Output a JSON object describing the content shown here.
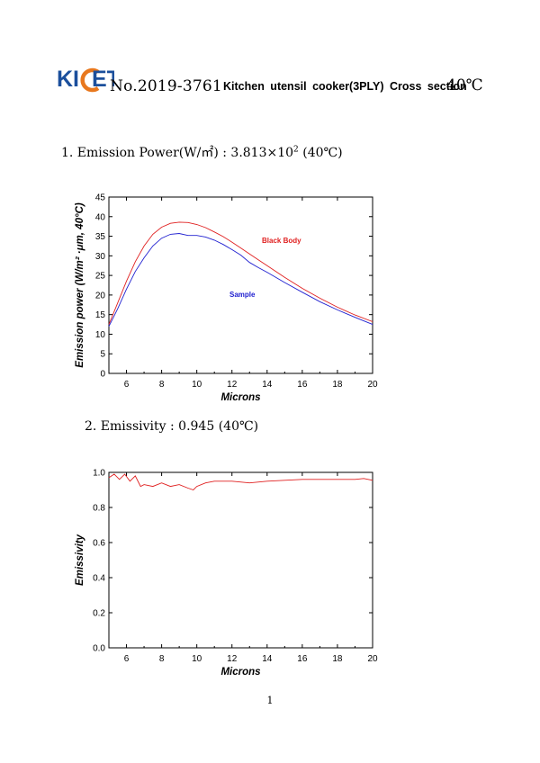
{
  "header": {
    "logo_text": "KICET",
    "doc_number": "No.2019-3761",
    "title": "Kitchen utensil cooker(3PLY) Cross section",
    "temperature": "40℃",
    "colors": {
      "logo_blue": "#1b4f9c",
      "logo_orange": "#e8781e"
    }
  },
  "section1": {
    "label_prefix": "1. Emission Power(W/㎡) : 3.813×10",
    "exponent": "2",
    "label_suffix": " (40℃)"
  },
  "section2": {
    "label": "2. Emissivity : 0.945 (40℃)"
  },
  "page_number": "1",
  "chart_data": [
    {
      "type": "line",
      "xlabel": "Microns",
      "ylabel": "Emission power (W/m² ·μm, 40°C)",
      "xlim": [
        5,
        20
      ],
      "ylim": [
        0,
        45
      ],
      "xticks": [
        6,
        8,
        10,
        12,
        14,
        16,
        18,
        20
      ],
      "yticks": [
        0,
        5,
        10,
        15,
        20,
        25,
        30,
        35,
        40,
        45
      ],
      "grid": false,
      "series": [
        {
          "name": "Black Body",
          "color": "#e02020",
          "x": [
            5.0,
            5.5,
            6.0,
            6.5,
            7.0,
            7.5,
            8.0,
            8.5,
            9.0,
            9.5,
            10.0,
            10.5,
            11.0,
            11.5,
            12.0,
            12.5,
            13.0,
            13.5,
            14.0,
            15.0,
            16.0,
            17.0,
            18.0,
            19.0,
            20.0
          ],
          "y": [
            12.5,
            18.0,
            23.5,
            28.5,
            32.5,
            35.5,
            37.3,
            38.3,
            38.6,
            38.5,
            38.0,
            37.2,
            36.1,
            34.9,
            33.5,
            32.0,
            30.5,
            29.0,
            27.5,
            24.5,
            21.7,
            19.2,
            16.9,
            14.9,
            13.2
          ]
        },
        {
          "name": "Sample",
          "color": "#2020d0",
          "x": [
            5.0,
            5.5,
            6.0,
            6.5,
            7.0,
            7.5,
            8.0,
            8.5,
            9.0,
            9.5,
            10.0,
            10.5,
            11.0,
            11.5,
            12.0,
            12.5,
            13.0,
            13.5,
            14.0,
            15.0,
            16.0,
            17.0,
            18.0,
            19.0,
            20.0
          ],
          "y": [
            12.0,
            16.5,
            21.5,
            26.0,
            29.5,
            32.5,
            34.5,
            35.5,
            35.7,
            35.2,
            35.2,
            34.8,
            34.0,
            32.9,
            31.6,
            30.2,
            28.3,
            27.0,
            25.8,
            23.2,
            20.7,
            18.3,
            16.2,
            14.3,
            12.5
          ]
        }
      ],
      "annotations": [
        {
          "text": "Black Body",
          "color": "#e02020"
        },
        {
          "text": "Sample",
          "color": "#2020d0"
        }
      ]
    },
    {
      "type": "line",
      "xlabel": "Microns",
      "ylabel": "Emissivity",
      "xlim": [
        5,
        20
      ],
      "ylim": [
        0,
        1.0
      ],
      "xticks": [
        6,
        8,
        10,
        12,
        14,
        16,
        18,
        20
      ],
      "yticks": [
        0.0,
        0.2,
        0.4,
        0.6,
        0.8,
        1.0
      ],
      "grid": false,
      "series": [
        {
          "color": "#e02020",
          "x": [
            5.0,
            5.3,
            5.6,
            5.9,
            6.2,
            6.5,
            6.8,
            7.0,
            7.5,
            8.0,
            8.5,
            9.0,
            9.5,
            9.8,
            10.0,
            10.5,
            11.0,
            12.0,
            13.0,
            14.0,
            15.0,
            16.0,
            17.0,
            18.0,
            19.0,
            19.5,
            20.0
          ],
          "y": [
            0.97,
            0.99,
            0.96,
            0.99,
            0.95,
            0.98,
            0.92,
            0.93,
            0.92,
            0.94,
            0.92,
            0.93,
            0.91,
            0.9,
            0.92,
            0.94,
            0.95,
            0.95,
            0.94,
            0.95,
            0.955,
            0.96,
            0.96,
            0.96,
            0.96,
            0.965,
            0.955
          ]
        }
      ]
    }
  ]
}
